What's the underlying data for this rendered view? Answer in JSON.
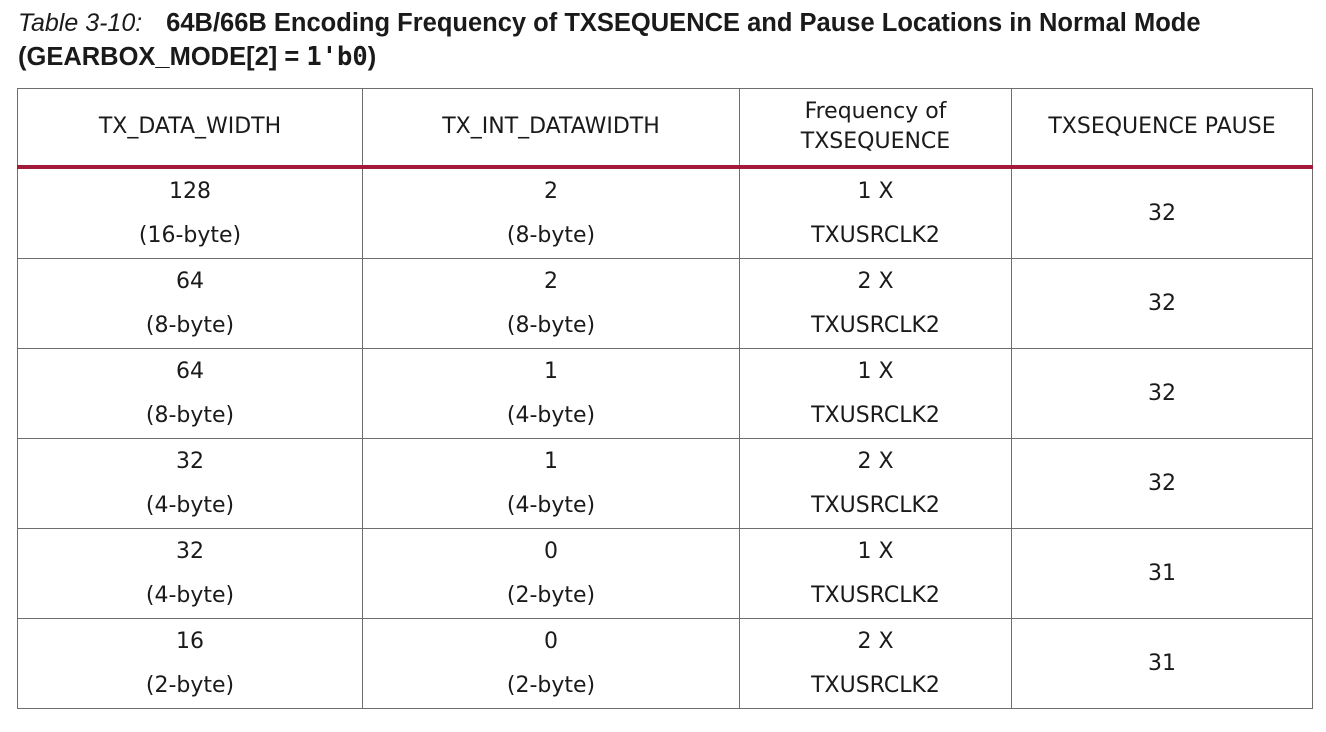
{
  "caption": {
    "number": "Table 3-10:",
    "title_main": "64B/66B Encoding Frequency of TXSEQUENCE and Pause Locations in Normal Mode",
    "title_paren_open": "(GEARBOX_MODE[2] = ",
    "title_code": "1'b0",
    "title_paren_close": ")"
  },
  "table": {
    "headers": {
      "col1": "TX_DATA_WIDTH",
      "col2": "TX_INT_DATAWIDTH",
      "col3_line1": "Frequency of",
      "col3_line2": "TXSEQUENCE",
      "col4": "TXSEQUENCE PAUSE"
    },
    "rows": [
      {
        "tx_data_width": "128",
        "tx_data_width_bytes": "(16-byte)",
        "tx_int_datawidth": "2",
        "tx_int_datawidth_bytes": "(8-byte)",
        "freq_mult": "1 X",
        "freq_clk": "TXUSRCLK2",
        "pause": "32"
      },
      {
        "tx_data_width": "64",
        "tx_data_width_bytes": "(8-byte)",
        "tx_int_datawidth": "2",
        "tx_int_datawidth_bytes": "(8-byte)",
        "freq_mult": "2 X",
        "freq_clk": "TXUSRCLK2",
        "pause": "32"
      },
      {
        "tx_data_width": "64",
        "tx_data_width_bytes": "(8-byte)",
        "tx_int_datawidth": "1",
        "tx_int_datawidth_bytes": "(4-byte)",
        "freq_mult": "1 X",
        "freq_clk": "TXUSRCLK2",
        "pause": "32"
      },
      {
        "tx_data_width": "32",
        "tx_data_width_bytes": "(4-byte)",
        "tx_int_datawidth": "1",
        "tx_int_datawidth_bytes": "(4-byte)",
        "freq_mult": "2 X",
        "freq_clk": "TXUSRCLK2",
        "pause": "32"
      },
      {
        "tx_data_width": "32",
        "tx_data_width_bytes": "(4-byte)",
        "tx_int_datawidth": "0",
        "tx_int_datawidth_bytes": "(2-byte)",
        "freq_mult": "1 X",
        "freq_clk": "TXUSRCLK2",
        "pause": "31"
      },
      {
        "tx_data_width": "16",
        "tx_data_width_bytes": "(2-byte)",
        "tx_int_datawidth": "0",
        "tx_int_datawidth_bytes": "(2-byte)",
        "freq_mult": "2 X",
        "freq_clk": "TXUSRCLK2",
        "pause": "31"
      }
    ]
  },
  "colors": {
    "header_rule": "#a3193a",
    "grid": "#6e6e6e",
    "text": "#1a1a1a"
  }
}
